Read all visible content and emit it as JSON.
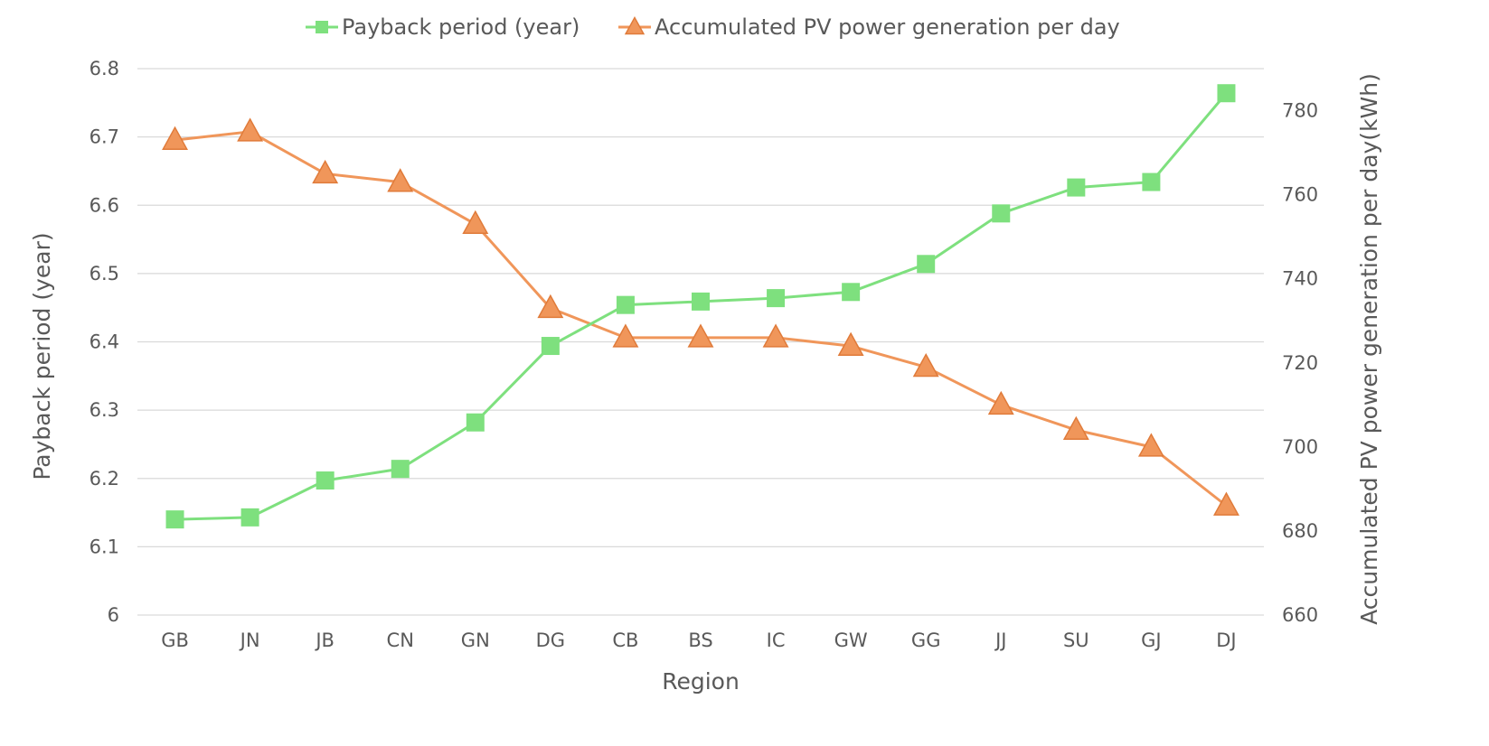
{
  "chart_data": {
    "type": "line",
    "title": "",
    "xlabel": "Region",
    "ylabel": "Payback period (year)",
    "y2label": "Accumulated PV power generation per day(kWh)",
    "categories": [
      "GB",
      "JN",
      "JB",
      "CN",
      "GN",
      "DG",
      "CB",
      "BS",
      "IC",
      "GW",
      "GG",
      "JJ",
      "SU",
      "GJ",
      "DJ"
    ],
    "ylim": [
      6,
      6.8
    ],
    "yticks": [
      "6",
      "6.1",
      "6.2",
      "6.3",
      "6.4",
      "6.5",
      "6.6",
      "6.7",
      "6.8"
    ],
    "y2lim": [
      660,
      790
    ],
    "y2ticks": [
      "660",
      "680",
      "700",
      "720",
      "740",
      "760",
      "780"
    ],
    "grid": true,
    "legend_position": "top-center",
    "series": [
      {
        "name": "Payback period (year)",
        "axis": "left",
        "marker": "square",
        "color": "#7ee07e",
        "values": [
          6.14,
          6.143,
          6.197,
          6.214,
          6.282,
          6.394,
          6.454,
          6.459,
          6.464,
          6.473,
          6.514,
          6.588,
          6.626,
          6.634,
          6.764
        ]
      },
      {
        "name": "Accumulated PV power generation per day",
        "axis": "right",
        "marker": "triangle",
        "color": "#f0965a",
        "values": [
          773,
          775,
          765,
          763,
          753,
          733,
          726,
          726,
          726,
          724,
          719,
          710,
          704,
          700,
          686
        ]
      }
    ]
  }
}
